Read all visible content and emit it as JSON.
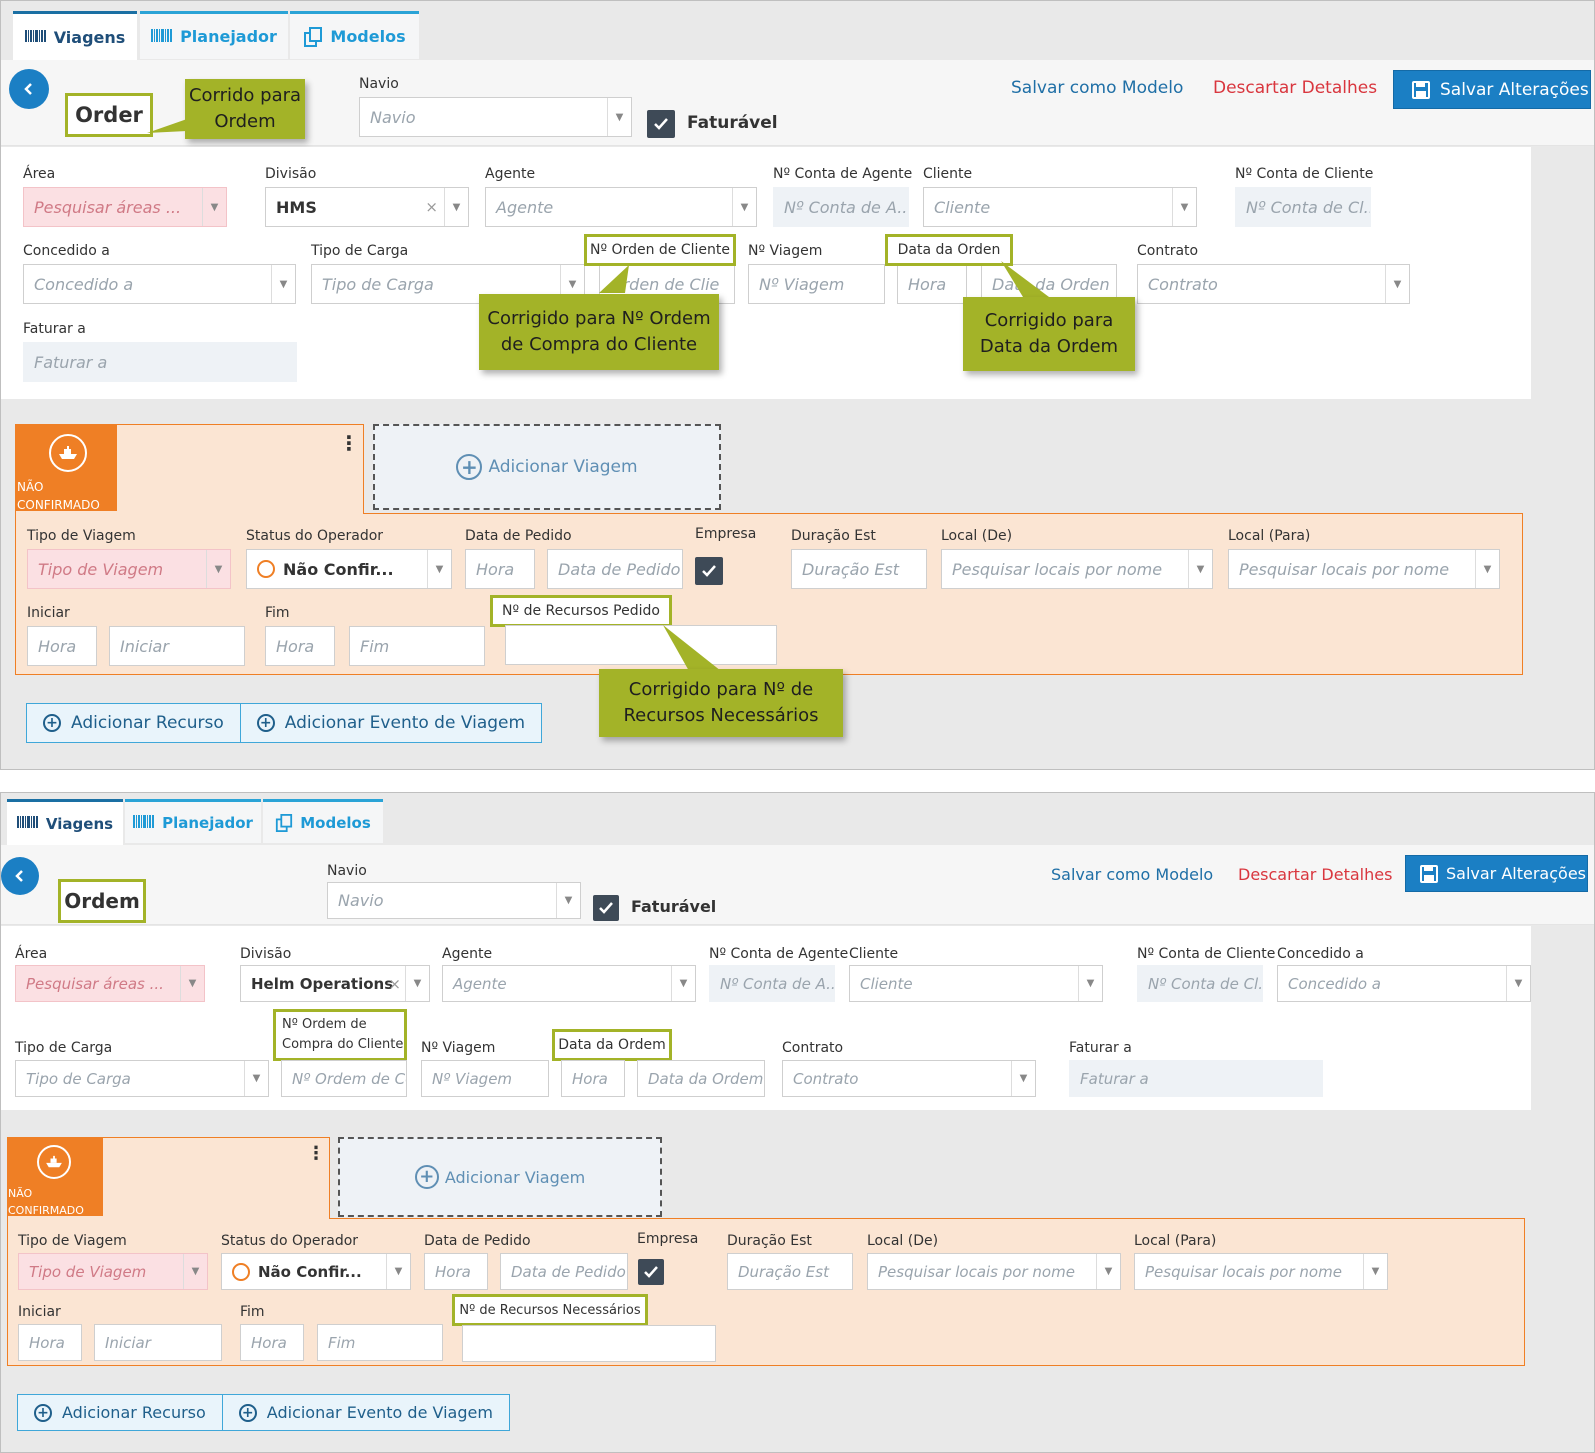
{
  "tabs": {
    "viagens": "Viagens",
    "planejador": "Planejador",
    "modelos": "Modelos"
  },
  "header": {
    "navio_label": "Navio",
    "navio_placeholder": "Navio",
    "faturavel": "Faturável",
    "salvar_modelo": "Salvar como Modelo",
    "descartar": "Descartar Detalhes",
    "salvar": "Salvar Alterações"
  },
  "top": {
    "order_title": "Order",
    "fields": {
      "area": "Área",
      "area_ph": "Pesquisar áreas ...",
      "divisao": "Divisão",
      "divisao_val": "HMS",
      "agente": "Agente",
      "agente_ph": "Agente",
      "conta_agente": "Nº Conta de Agente",
      "conta_agente_ph": "Nº Conta de A...",
      "cliente": "Cliente",
      "cliente_ph": "Cliente",
      "conta_cliente": "Nº Conta de Cliente",
      "conta_cliente_ph": "Nº Conta de Cl...",
      "concedido": "Concedido a",
      "concedido_ph": "Concedido a",
      "tipo_carga": "Tipo de Carga",
      "tipo_carga_ph": "Tipo de Carga",
      "ordem_cliente": "Nº Orden de Cliente",
      "ordem_cliente_ph": "Orden de Clie",
      "viagem": "Nº Viagem",
      "viagem_ph": "Nº Viagem",
      "data_ordem": "Data da Orden",
      "hora_ph": "Hora",
      "data_ordem_ph": "Data da Orden",
      "contrato": "Contrato",
      "contrato_ph": "Contrato",
      "faturar": "Faturar a",
      "faturar_ph": "Faturar a"
    },
    "callouts": {
      "c1": "Corrido para Ordem",
      "c2": "Corrigido para Nº Ordem de Compra do Cliente",
      "c3": "Corrigido para Data da Ordem",
      "c4": "Corrigido para Nº de Recursos Necessários"
    },
    "trip": {
      "status": "NÃO CONFIRMADO",
      "add_viagem": "Adicionar Viagem",
      "tipo_viagem": "Tipo de Viagem",
      "tipo_viagem_ph": "Tipo de Viagem",
      "status_op": "Status do Operador",
      "status_op_val": "Não Confir...",
      "data_pedido": "Data de Pedido",
      "hora_ph": "Hora",
      "data_pedido_ph": "Data de Pedido",
      "empresa": "Empresa",
      "duracao": "Duração Est",
      "duracao_ph": "Duração Est",
      "local_de": "Local (De)",
      "local_ph": "Pesquisar locais por nome",
      "local_para": "Local (Para)",
      "iniciar": "Iniciar",
      "iniciar_ph": "Iniciar",
      "fim": "Fim",
      "fim_ph": "Fim",
      "recursos": "Nº de Recursos Pedido"
    },
    "buttons": {
      "add_recurso": "Adicionar Recurso",
      "add_evento": "Adicionar Evento de Viagem"
    }
  },
  "bottom": {
    "order_title": "Ordem",
    "fields": {
      "area": "Área",
      "area_ph": "Pesquisar áreas ...",
      "divisao": "Divisão",
      "divisao_val": "Helm Operations",
      "agente": "Agente",
      "agente_ph": "Agente",
      "conta_agente": "Nº Conta de Agente",
      "conta_agente_ph": "Nº Conta de A...",
      "cliente": "Cliente",
      "cliente_ph": "Cliente",
      "conta_cliente": "Nº Conta de Cliente",
      "conta_cliente_ph": "Nº Conta de Cl...",
      "concedido": "Concedido a",
      "concedido_ph": "Concedido a",
      "tipo_carga": "Tipo de Carga",
      "tipo_carga_ph": "Tipo de Carga",
      "ordem_cliente_1": "Nº Ordem de",
      "ordem_cliente_2": "Compra do Cliente",
      "ordem_cliente_ph": "Nº Ordem de Co",
      "viagem": "Nº Viagem",
      "viagem_ph": "Nº Viagem",
      "data_ordem": "Data da Ordem",
      "hora_ph": "Hora",
      "data_ordem_ph": "Data da Ordem",
      "contrato": "Contrato",
      "contrato_ph": "Contrato",
      "faturar": "Faturar a",
      "faturar_ph": "Faturar a"
    },
    "trip": {
      "status": "NÃO CONFIRMADO",
      "add_viagem": "Adicionar Viagem",
      "tipo_viagem": "Tipo de Viagem",
      "tipo_viagem_ph": "Tipo de Viagem",
      "status_op": "Status do Operador",
      "status_op_val": "Não Confir...",
      "data_pedido": "Data de Pedido",
      "hora_ph": "Hora",
      "data_pedido_ph": "Data de Pedido",
      "empresa": "Empresa",
      "duracao": "Duração Est",
      "duracao_ph": "Duração Est",
      "local_de": "Local (De)",
      "local_ph": "Pesquisar locais por nome",
      "local_para": "Local (Para)",
      "iniciar": "Iniciar",
      "iniciar_ph": "Iniciar",
      "fim": "Fim",
      "fim_ph": "Fim",
      "recursos": "Nº de Recursos Necessários"
    },
    "buttons": {
      "add_recurso": "Adicionar Recurso",
      "add_evento": "Adicionar Evento de Viagem"
    }
  },
  "colors": {
    "accent": "#1b7fc4",
    "callout": "#a3b328",
    "orange": "#ef7f25",
    "danger": "#d9363e"
  }
}
